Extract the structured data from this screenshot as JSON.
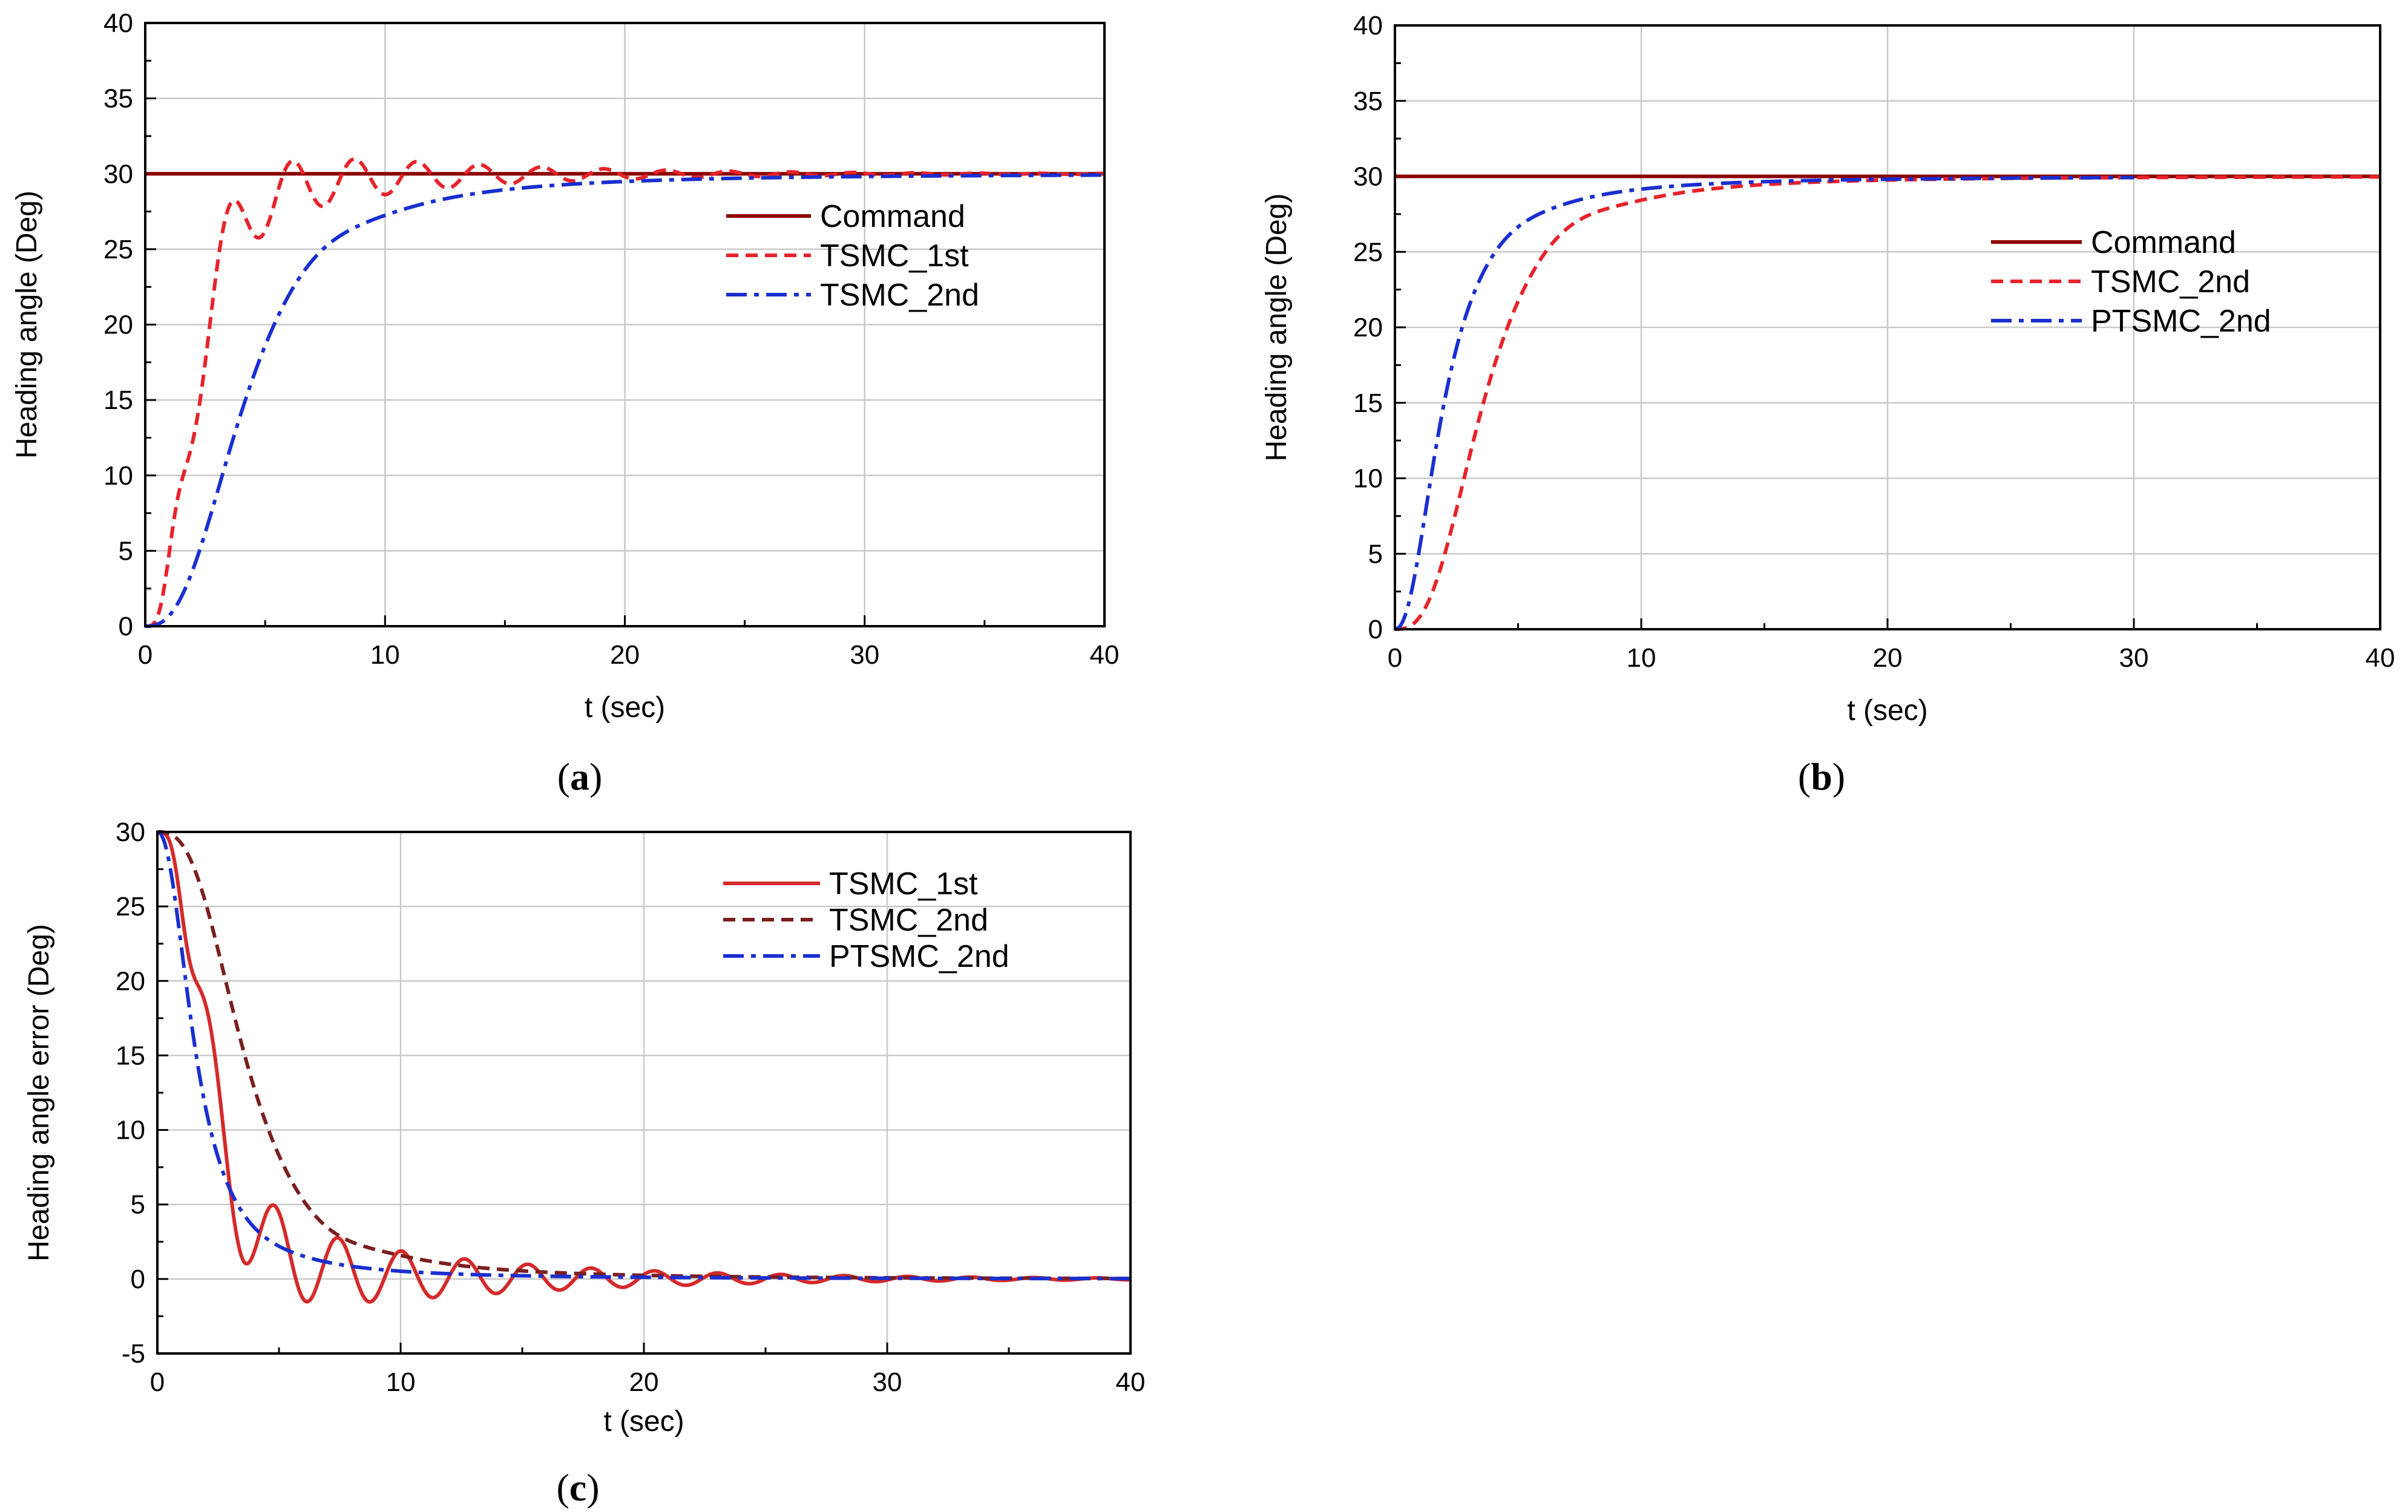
{
  "colors": {
    "command": "#8b0000",
    "tsmc_1st": "#e8222a",
    "tsmc_2nd_red": "#e8222a",
    "tsmc_2nd_dark": "#7a1f1f",
    "tsmc_2nd_blue": "#1a2fd0",
    "ptsmc_2nd": "#1a2fd0",
    "tsmc_1st_solid": "#d42a2a"
  },
  "chart_data": [
    {
      "id": "a",
      "type": "line",
      "caption_open": "(",
      "caption_letter": "a",
      "caption_close": ")",
      "xlabel": "t (sec)",
      "ylabel": "Heading angle (Deg)",
      "xlim": [
        0,
        40
      ],
      "ylim": [
        0,
        40
      ],
      "xticks": [
        0,
        10,
        20,
        30,
        40
      ],
      "yticks": [
        0,
        5,
        10,
        15,
        20,
        25,
        30,
        35,
        40
      ],
      "grid": true,
      "legend_position": "middle-right",
      "series": [
        {
          "name": "Command",
          "style": "solid",
          "color_key": "command",
          "width": 6,
          "model": {
            "kind": "const",
            "value": 30
          }
        },
        {
          "name": "TSMC_1st",
          "style": "dash",
          "color_key": "tsmc_1st",
          "width": 6,
          "model": {
            "kind": "osc",
            "amp": 30,
            "tr": 2.0,
            "n": 3,
            "oscAmp": 4.0,
            "period": 2.6,
            "tau": 8.0,
            "phase": 0.7
          }
        },
        {
          "name": "TSMC_2nd",
          "style": "dashdot",
          "color_key": "tsmc_2nd_blue",
          "width": 6,
          "model": {
            "kind": "rise",
            "amp": 30,
            "tr": 4.2,
            "n": 2.6,
            "overshoot": 0.6,
            "ovCenter": 7.0,
            "ovWidth": 2.2
          }
        }
      ]
    },
    {
      "id": "b",
      "type": "line",
      "caption_open": "(",
      "caption_letter": "b",
      "caption_close": ")",
      "xlabel": "t (sec)",
      "ylabel": "Heading angle (Deg)",
      "xlim": [
        0,
        40
      ],
      "ylim": [
        0,
        40
      ],
      "xticks": [
        0,
        10,
        20,
        30,
        40
      ],
      "yticks": [
        0,
        5,
        10,
        15,
        20,
        25,
        30,
        35,
        40
      ],
      "grid": true,
      "legend_position": "middle-right",
      "series": [
        {
          "name": "Command",
          "style": "solid",
          "color_key": "command",
          "width": 6,
          "model": {
            "kind": "const",
            "value": 30
          }
        },
        {
          "name": "TSMC_2nd",
          "style": "dash",
          "color_key": "tsmc_2nd_red",
          "width": 6,
          "model": {
            "kind": "rise",
            "amp": 30,
            "tr": 3.6,
            "n": 2.8,
            "overshoot": 0.6,
            "ovCenter": 6.8,
            "ovWidth": 2.0
          }
        },
        {
          "name": "PTSMC_2nd",
          "style": "dashdot",
          "color_key": "ptsmc_2nd",
          "width": 6,
          "model": {
            "kind": "rise",
            "amp": 30,
            "tr": 2.0,
            "n": 2.2,
            "overshoot": 0.2,
            "ovCenter": 4.5,
            "ovWidth": 1.5,
            "tmax": 30
          }
        }
      ]
    },
    {
      "id": "c",
      "type": "line",
      "caption_open": "(",
      "caption_letter": "c",
      "caption_close": ")",
      "xlabel": "t (sec)",
      "ylabel": "Heading angle error (Deg)",
      "xlim": [
        0,
        40
      ],
      "ylim": [
        -5,
        30
      ],
      "xticks": [
        0,
        10,
        20,
        30,
        40
      ],
      "yticks": [
        -5,
        0,
        5,
        10,
        15,
        20,
        25,
        30
      ],
      "grid": true,
      "legend_position": "top-right",
      "series": [
        {
          "name": "TSMC_1st",
          "style": "solid",
          "color_key": "tsmc_1st_solid",
          "width": 6,
          "model": {
            "kind": "err_osc",
            "amp": 30,
            "tr": 2.0,
            "n": 3,
            "oscAmp": 5.0,
            "period": 2.6,
            "tau": 9.0,
            "phase": 0.7
          }
        },
        {
          "name": "TSMC_2nd",
          "style": "dash",
          "color_key": "tsmc_2nd_dark",
          "width": 6,
          "model": {
            "kind": "err_rise",
            "amp": 30,
            "tr": 3.6,
            "n": 2.8,
            "overshoot": 0.6,
            "ovCenter": 6.8,
            "ovWidth": 2.0
          }
        },
        {
          "name": "PTSMC_2nd",
          "style": "dashdot",
          "color_key": "ptsmc_2nd",
          "width": 6,
          "model": {
            "kind": "err_rise",
            "amp": 30,
            "tr": 1.6,
            "n": 2.2,
            "overshoot": 0.1,
            "ovCenter": 4.0,
            "ovWidth": 1.5
          }
        }
      ]
    }
  ]
}
